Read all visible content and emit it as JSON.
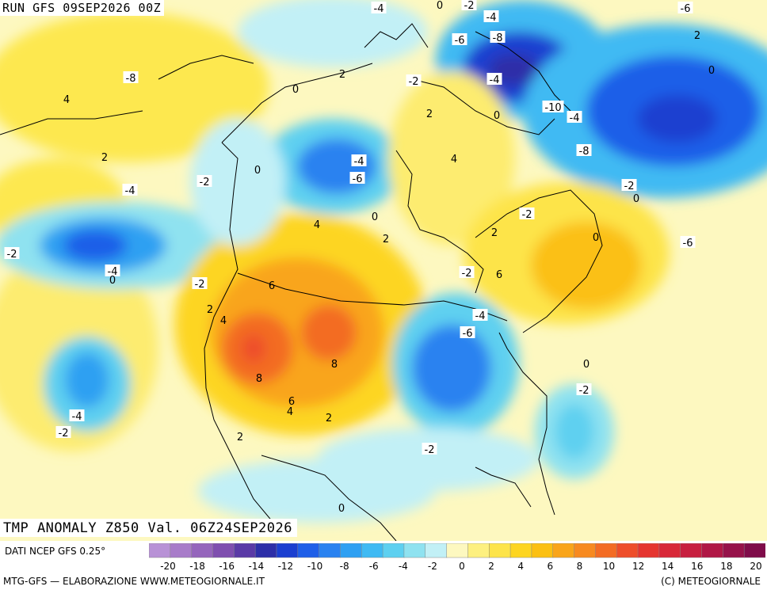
{
  "header": {
    "run_label": "RUN GFS 09SEP2026 00Z"
  },
  "map": {
    "title": "TMP ANOMALY Z850 Val. 06Z24SEP2026",
    "colors": {
      "land_neutral": "#fdf8c0",
      "coast": "#000000",
      "contour": "#ffffff"
    },
    "contour_labels": [
      "-4",
      "0",
      "-2",
      "-6",
      "-4",
      "2",
      "-8",
      "-6",
      "2",
      "-2",
      "-4",
      "0",
      "-8",
      "4",
      "-10",
      "-4",
      "0",
      "2",
      "-8",
      "0",
      "4",
      "0",
      "-4",
      "2",
      "-6",
      "-2",
      "-4",
      "-2",
      "0",
      "0",
      "-2",
      "4",
      "2",
      "2",
      "-2",
      "-6",
      "-4",
      "0",
      "-2",
      "6",
      "0",
      "-2",
      "6",
      "2",
      "4",
      "-4",
      "-6",
      "8",
      "8",
      "0",
      "6",
      "4",
      "-2",
      "2",
      "-4",
      "-2",
      "2",
      "-2",
      "0"
    ]
  },
  "footer": {
    "data_source": "DATI NCEP GFS 0.25°",
    "credit_left": "MTG-GFS — ELABORAZIONE WWW.METEOGIORNALE.IT",
    "credit_right": "(C) METEOGIORNALE"
  },
  "colorbar": {
    "ticks": [
      "-20",
      "-18",
      "-16",
      "-14",
      "-12",
      "-10",
      "-8",
      "-6",
      "-4",
      "-2",
      "0",
      "2",
      "4",
      "6",
      "8",
      "10",
      "12",
      "14",
      "16",
      "18",
      "20"
    ],
    "colors": [
      "#b892d6",
      "#a87cc9",
      "#9566bc",
      "#7f4faf",
      "#5a3aa6",
      "#2d2fa8",
      "#1b3fd0",
      "#1f5fe8",
      "#2a82f0",
      "#2fa0f2",
      "#3fbaf3",
      "#5ed0f0",
      "#8fe2f0",
      "#c2f0f6",
      "#fdf8c0",
      "#fdf080",
      "#fde44a",
      "#fdd520",
      "#fbc012",
      "#f9a51a",
      "#f78a20",
      "#f36c24",
      "#ee4e2a",
      "#e53530",
      "#d82838",
      "#c72040",
      "#b01846",
      "#96124a",
      "#7f0c4a"
    ]
  }
}
